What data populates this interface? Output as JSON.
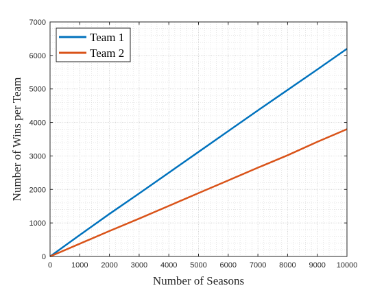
{
  "chart_data": {
    "type": "line",
    "xlabel": "Number of Seasons",
    "ylabel": "Number of Wins per Team",
    "xlim": [
      0,
      10000
    ],
    "ylim": [
      0,
      7000
    ],
    "xticks": [
      0,
      1000,
      2000,
      3000,
      4000,
      5000,
      6000,
      7000,
      8000,
      9000,
      10000
    ],
    "yticks": [
      0,
      1000,
      2000,
      3000,
      4000,
      5000,
      6000,
      7000
    ],
    "grid": "on (major and minor, dotted)",
    "legend_position": "top-left",
    "series": [
      {
        "name": "Team 1",
        "color": "#0072BD",
        "x": [
          0,
          1000,
          2000,
          3000,
          4000,
          5000,
          6000,
          7000,
          8000,
          9000,
          10000
        ],
        "y": [
          0,
          640,
          1270,
          1880,
          2500,
          3120,
          3740,
          4360,
          4970,
          5580,
          6200
        ]
      },
      {
        "name": "Team 2",
        "color": "#D95319",
        "x": [
          0,
          1000,
          2000,
          3000,
          4000,
          5000,
          6000,
          7000,
          8000,
          9000,
          10000
        ],
        "y": [
          0,
          380,
          760,
          1130,
          1510,
          1890,
          2270,
          2650,
          3020,
          3420,
          3800
        ]
      }
    ]
  }
}
